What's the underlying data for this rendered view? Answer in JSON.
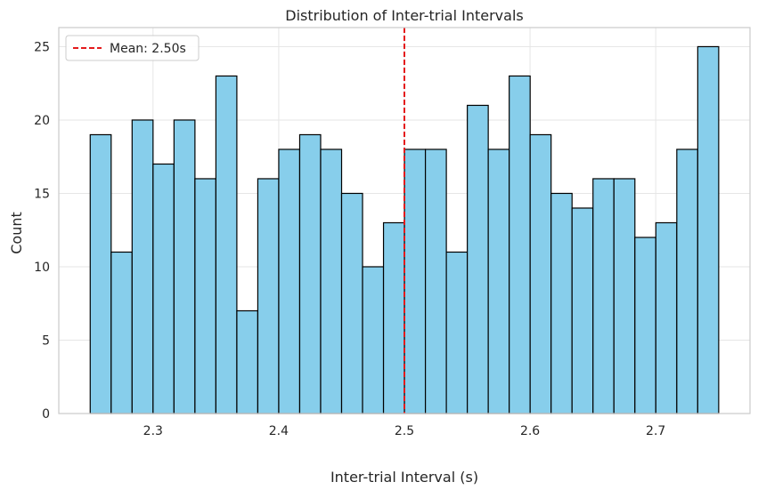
{
  "chart_data": {
    "type": "bar",
    "title": "Distribution of Inter-trial Intervals",
    "xlabel": "Inter-trial Interval (s)",
    "ylabel": "Count",
    "xlim": [
      2.225,
      2.775
    ],
    "ylim": [
      0,
      26.3
    ],
    "bin_start": 2.25,
    "bin_width": 0.01667,
    "values": [
      19,
      11,
      20,
      17,
      20,
      16,
      23,
      7,
      16,
      18,
      19,
      18,
      15,
      10,
      13,
      18,
      18,
      11,
      21,
      18,
      23,
      19,
      15,
      14,
      16,
      16,
      12,
      13,
      18,
      25
    ],
    "x_ticks": [
      {
        "value": 2.3,
        "label": "2.3"
      },
      {
        "value": 2.4,
        "label": "2.4"
      },
      {
        "value": 2.5,
        "label": "2.5"
      },
      {
        "value": 2.6,
        "label": "2.6"
      },
      {
        "value": 2.7,
        "label": "2.7"
      }
    ],
    "y_ticks": [
      {
        "value": 0,
        "label": "0"
      },
      {
        "value": 5,
        "label": "5"
      },
      {
        "value": 10,
        "label": "10"
      },
      {
        "value": 15,
        "label": "15"
      },
      {
        "value": 20,
        "label": "20"
      },
      {
        "value": 25,
        "label": "25"
      }
    ],
    "mean_line": {
      "value": 2.5,
      "label": "Mean: 2.50s"
    },
    "grid": true,
    "legend_position": "top-left",
    "colors": {
      "bar_fill": "#87ceeb",
      "bar_edge": "#000000",
      "mean_line": "#e41a1c",
      "grid": "#e6e6e6",
      "axes_edge": "#cccccc",
      "text": "#262626"
    }
  }
}
